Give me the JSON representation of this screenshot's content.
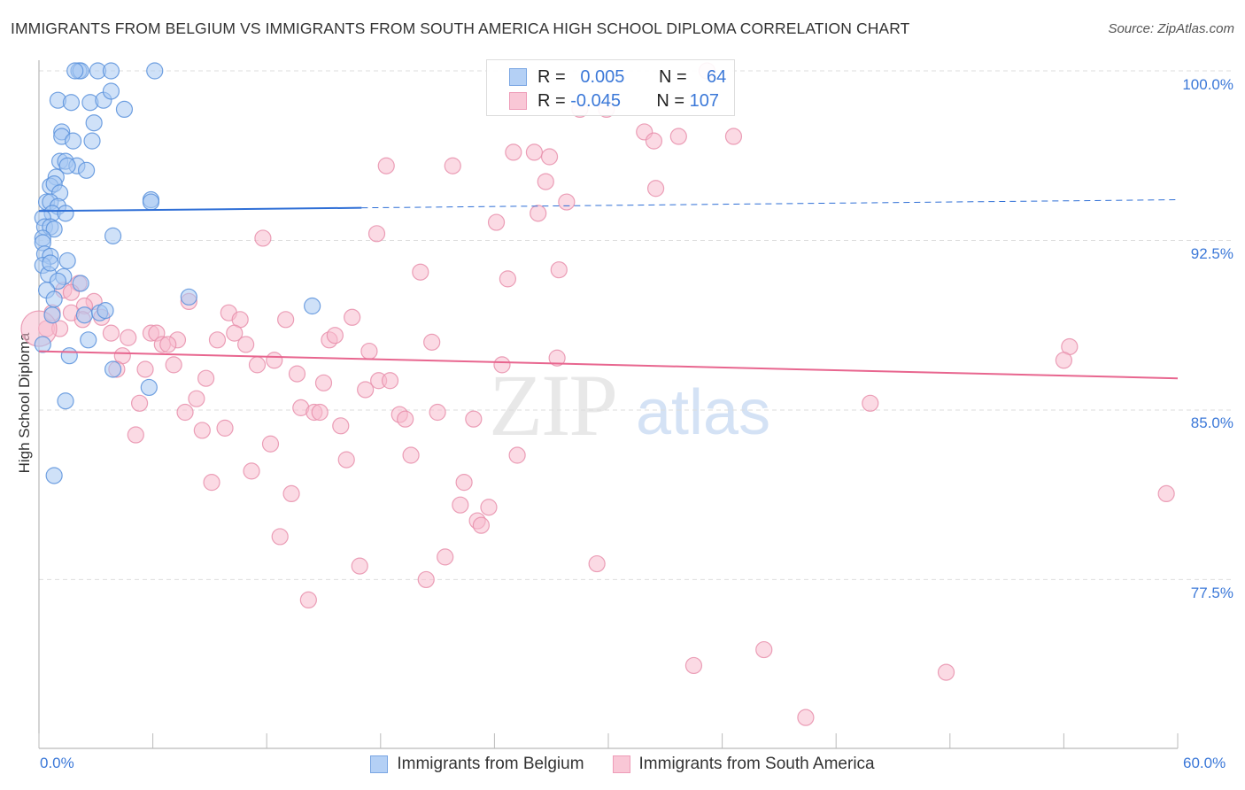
{
  "chart_data": {
    "type": "scatter",
    "title": "IMMIGRANTS FROM BELGIUM VS IMMIGRANTS FROM SOUTH AMERICA HIGH SCHOOL DIPLOMA CORRELATION CHART",
    "source": "Source: ZipAtlas.com",
    "xlabel": "",
    "ylabel": "High School Diploma",
    "xlim": [
      0,
      60
    ],
    "ylim": [
      70.5,
      100.5
    ],
    "x_tick_labels": [
      "0.0%",
      "60.0%"
    ],
    "y_ticks": [
      100,
      92.5,
      85,
      77.5
    ],
    "y_tick_labels": [
      "100.0%",
      "92.5%",
      "85.0%",
      "77.5%"
    ],
    "grid": true,
    "legend_placement": "top-center",
    "colors": {
      "blue_fill": "#a8c8f2",
      "blue_stroke": "#5a92dc",
      "blue_line": "#2f6fd6",
      "pink_fill": "#f7bccd",
      "pink_stroke": "#e88fac",
      "pink_line": "#e8668f"
    },
    "series": [
      {
        "name": "Immigrants from Belgium",
        "R": "0.005",
        "N": "64",
        "trend": {
          "x": [
            0,
            60
          ],
          "y": [
            93.8,
            94.3
          ],
          "solid_until": 17
        },
        "points": [
          [
            2.1,
            100
          ],
          [
            2.2,
            100
          ],
          [
            3.1,
            100
          ],
          [
            3.8,
            100
          ],
          [
            6.1,
            100
          ],
          [
            1.9,
            100
          ],
          [
            1.0,
            98.7
          ],
          [
            1.7,
            98.6
          ],
          [
            2.7,
            98.6
          ],
          [
            3.4,
            98.7
          ],
          [
            3.8,
            99.1
          ],
          [
            4.5,
            98.3
          ],
          [
            2.9,
            97.7
          ],
          [
            1.2,
            97.3
          ],
          [
            1.2,
            97.1
          ],
          [
            1.8,
            96.9
          ],
          [
            2.8,
            96.9
          ],
          [
            1.1,
            96.0
          ],
          [
            1.4,
            96.0
          ],
          [
            2.0,
            95.8
          ],
          [
            2.5,
            95.6
          ],
          [
            1.5,
            95.8
          ],
          [
            0.9,
            95.3
          ],
          [
            0.6,
            94.9
          ],
          [
            0.8,
            95.0
          ],
          [
            1.1,
            94.6
          ],
          [
            0.4,
            94.2
          ],
          [
            0.6,
            94.2
          ],
          [
            1.0,
            94.0
          ],
          [
            0.7,
            93.7
          ],
          [
            1.4,
            93.7
          ],
          [
            0.2,
            93.5
          ],
          [
            0.3,
            93.1
          ],
          [
            0.6,
            93.1
          ],
          [
            0.8,
            93.0
          ],
          [
            0.2,
            92.6
          ],
          [
            0.2,
            92.4
          ],
          [
            3.9,
            92.7
          ],
          [
            5.9,
            94.3
          ],
          [
            5.9,
            94.2
          ],
          [
            0.3,
            91.9
          ],
          [
            0.6,
            91.8
          ],
          [
            1.5,
            91.6
          ],
          [
            0.2,
            91.4
          ],
          [
            0.5,
            91.0
          ],
          [
            1.3,
            90.9
          ],
          [
            1.0,
            90.7
          ],
          [
            2.2,
            90.6
          ],
          [
            0.4,
            90.3
          ],
          [
            0.8,
            89.9
          ],
          [
            7.9,
            90.0
          ],
          [
            14.4,
            89.6
          ],
          [
            2.4,
            89.2
          ],
          [
            3.2,
            89.3
          ],
          [
            0.7,
            89.2
          ],
          [
            2.6,
            88.1
          ],
          [
            0.2,
            87.9
          ],
          [
            1.6,
            87.4
          ],
          [
            3.9,
            86.8
          ],
          [
            5.8,
            86.0
          ],
          [
            1.4,
            85.4
          ],
          [
            0.8,
            82.1
          ],
          [
            0.6,
            91.5
          ],
          [
            3.5,
            89.4
          ]
        ]
      },
      {
        "name": "Immigrants from South America",
        "R": "-0.045",
        "N": "107",
        "trend": {
          "x": [
            0,
            60
          ],
          "y": [
            87.6,
            86.4
          ],
          "solid_until": 60
        },
        "points": [
          [
            35.2,
            100
          ],
          [
            28.5,
            98.3
          ],
          [
            29.9,
            98.3
          ],
          [
            31.9,
            97.3
          ],
          [
            32.4,
            96.9
          ],
          [
            33.7,
            97.1
          ],
          [
            36.6,
            97.1
          ],
          [
            25.0,
            96.4
          ],
          [
            26.1,
            96.4
          ],
          [
            26.9,
            96.2
          ],
          [
            18.3,
            95.8
          ],
          [
            21.8,
            95.8
          ],
          [
            26.7,
            95.1
          ],
          [
            32.5,
            94.8
          ],
          [
            27.8,
            94.2
          ],
          [
            26.3,
            93.7
          ],
          [
            24.1,
            93.3
          ],
          [
            11.8,
            92.6
          ],
          [
            17.8,
            92.8
          ],
          [
            20.1,
            91.1
          ],
          [
            27.4,
            91.2
          ],
          [
            24.7,
            90.8
          ],
          [
            2.1,
            90.6
          ],
          [
            1.3,
            90.3
          ],
          [
            7.9,
            89.8
          ],
          [
            2.9,
            89.8
          ],
          [
            2.4,
            89.6
          ],
          [
            10.0,
            89.3
          ],
          [
            16.5,
            89.1
          ],
          [
            13.0,
            89.0
          ],
          [
            10.6,
            89.0
          ],
          [
            3.3,
            89.1
          ],
          [
            1.7,
            89.3
          ],
          [
            0.7,
            89.3
          ],
          [
            0.4,
            88.6
          ],
          [
            1.1,
            88.6
          ],
          [
            3.8,
            88.4
          ],
          [
            4.7,
            88.2
          ],
          [
            5.9,
            88.4
          ],
          [
            6.2,
            88.4
          ],
          [
            7.3,
            88.1
          ],
          [
            9.4,
            88.1
          ],
          [
            10.3,
            88.4
          ],
          [
            10.9,
            87.9
          ],
          [
            15.3,
            88.1
          ],
          [
            15.6,
            88.3
          ],
          [
            20.7,
            88.0
          ],
          [
            6.5,
            87.9
          ],
          [
            6.8,
            87.9
          ],
          [
            4.4,
            87.4
          ],
          [
            17.4,
            87.6
          ],
          [
            54.3,
            87.8
          ],
          [
            54.0,
            87.2
          ],
          [
            27.3,
            87.3
          ],
          [
            24.4,
            87.0
          ],
          [
            11.5,
            87.0
          ],
          [
            12.4,
            87.2
          ],
          [
            13.6,
            86.6
          ],
          [
            15.0,
            86.2
          ],
          [
            7.1,
            87.0
          ],
          [
            4.1,
            86.8
          ],
          [
            5.6,
            86.8
          ],
          [
            8.8,
            86.4
          ],
          [
            17.9,
            86.3
          ],
          [
            17.2,
            85.9
          ],
          [
            18.5,
            86.3
          ],
          [
            8.3,
            85.5
          ],
          [
            5.3,
            85.3
          ],
          [
            13.8,
            85.1
          ],
          [
            14.5,
            84.9
          ],
          [
            14.8,
            84.9
          ],
          [
            19.0,
            84.8
          ],
          [
            19.3,
            84.6
          ],
          [
            21.0,
            84.9
          ],
          [
            22.9,
            84.6
          ],
          [
            43.8,
            85.3
          ],
          [
            7.7,
            84.9
          ],
          [
            15.9,
            84.3
          ],
          [
            8.6,
            84.1
          ],
          [
            9.8,
            84.2
          ],
          [
            5.1,
            83.9
          ],
          [
            12.2,
            83.5
          ],
          [
            19.6,
            83.0
          ],
          [
            16.2,
            82.8
          ],
          [
            25.2,
            83.0
          ],
          [
            11.2,
            82.3
          ],
          [
            9.1,
            81.8
          ],
          [
            22.4,
            81.8
          ],
          [
            13.3,
            81.3
          ],
          [
            22.2,
            80.8
          ],
          [
            23.7,
            80.7
          ],
          [
            23.1,
            80.1
          ],
          [
            23.3,
            79.9
          ],
          [
            12.7,
            79.4
          ],
          [
            21.4,
            78.5
          ],
          [
            16.9,
            78.1
          ],
          [
            29.4,
            78.2
          ],
          [
            20.4,
            77.5
          ],
          [
            14.2,
            76.6
          ],
          [
            38.2,
            74.4
          ],
          [
            34.5,
            73.7
          ],
          [
            47.8,
            73.4
          ],
          [
            40.4,
            71.4
          ],
          [
            59.4,
            81.3
          ],
          [
            0.0,
            88.6
          ],
          [
            1.7,
            90.2
          ],
          [
            2.3,
            89.0
          ]
        ]
      }
    ]
  },
  "legend": {
    "r_label": "R =",
    "n_label": "N ="
  }
}
